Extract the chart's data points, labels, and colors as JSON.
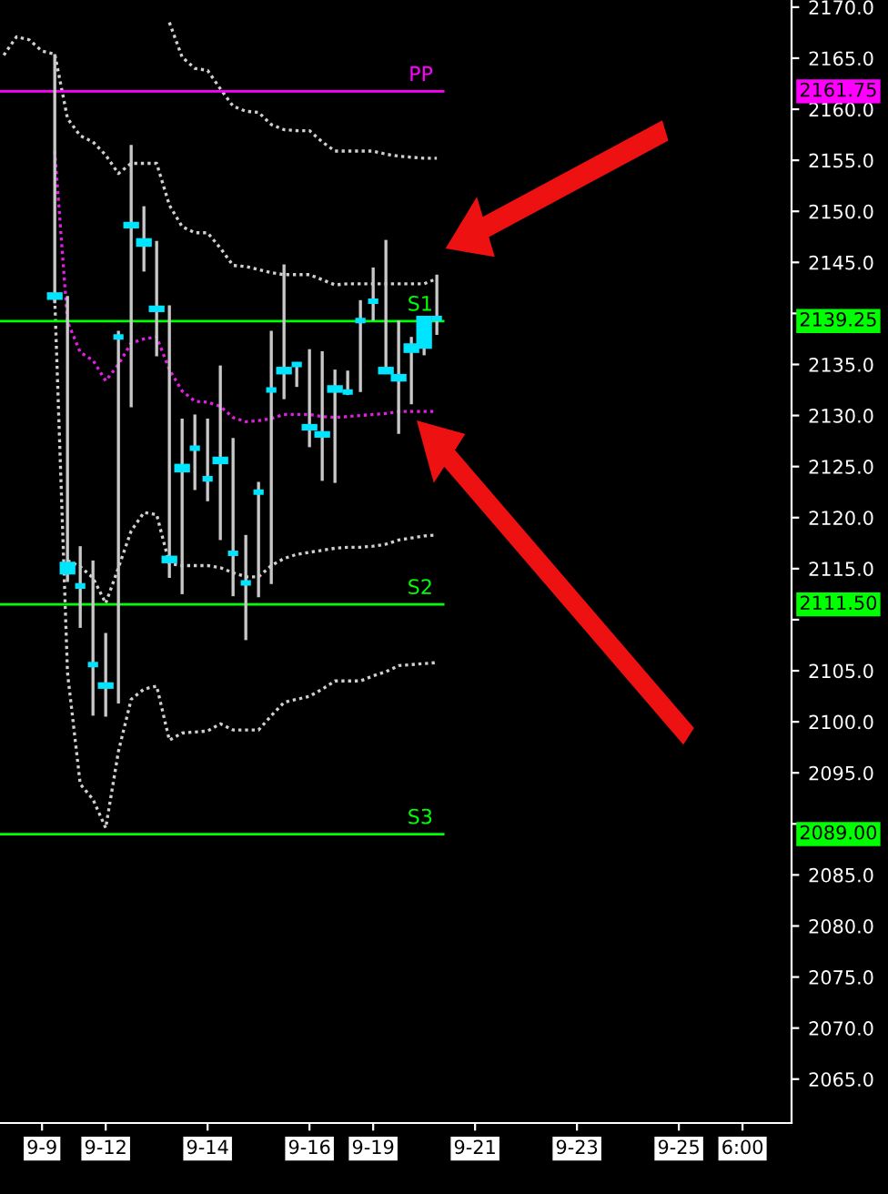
{
  "chart_data": {
    "type": "candlestick",
    "categories": [
      null,
      null,
      null,
      "9-9",
      null,
      null,
      null,
      null,
      "9-12",
      null,
      null,
      null,
      null,
      null,
      null,
      null,
      "9-14",
      null,
      null,
      null,
      null,
      null,
      null,
      null,
      "9-16",
      null,
      null,
      null,
      null,
      "9-19",
      null,
      null,
      null,
      null,
      null,
      null,
      null,
      "9-21",
      null,
      null,
      null,
      null,
      null,
      null,
      null,
      "9-23",
      null,
      null,
      null,
      null,
      null,
      null,
      null,
      "9-25",
      null,
      null,
      null,
      null,
      "6:00",
      null,
      null,
      null
    ],
    "ohlc": [
      null,
      null,
      null,
      null,
      [
        2141.8,
        2165.4,
        2141.0,
        2141.6
      ],
      [
        2114.7,
        2141.7,
        2113.7,
        2115.4
      ],
      [
        2113.3,
        2117.2,
        2109.2,
        2113.3
      ],
      [
        2105.6,
        2115.8,
        2100.6,
        2105.6
      ],
      [
        2103.6,
        2108.7,
        2100.5,
        2103.5
      ],
      [
        2137.7,
        2138.3,
        2101.8,
        2137.7
      ],
      [
        2148.6,
        2156.5,
        2130.8,
        2148.7
      ],
      [
        2147.1,
        2150.5,
        2144.1,
        2146.8
      ],
      [
        2140.5,
        2147.1,
        2135.8,
        2140.4
      ],
      [
        2116.0,
        2140.8,
        2114.1,
        2115.8
      ],
      [
        2125.0,
        2129.7,
        2112.5,
        2124.7
      ],
      [
        2126.8,
        2130.1,
        2122.7,
        2126.8
      ],
      [
        2123.8,
        2129.7,
        2121.6,
        2123.8
      ],
      [
        2125.5,
        2134.9,
        2117.8,
        2125.7
      ],
      [
        2116.5,
        2127.8,
        2112.3,
        2116.5
      ],
      [
        2113.6,
        2118.3,
        2108.0,
        2113.6
      ],
      [
        2122.5,
        2123.5,
        2112.2,
        2122.5
      ],
      [
        2132.5,
        2138.3,
        2113.5,
        2132.5
      ],
      [
        2134.3,
        2144.8,
        2131.6,
        2134.5
      ],
      [
        2135.0,
        2135.2,
        2132.8,
        2135.0
      ],
      [
        2128.8,
        2136.5,
        2126.9,
        2128.9
      ],
      [
        2128.1,
        2136.3,
        2123.6,
        2128.2
      ],
      [
        2132.7,
        2134.5,
        2123.4,
        2132.5
      ],
      [
        2132.3,
        2134.4,
        2132.0,
        2132.3
      ],
      [
        2139.3,
        2141.3,
        2132.3,
        2139.3
      ],
      [
        2141.2,
        2144.5,
        2139.3,
        2141.2
      ],
      [
        2134.3,
        2147.2,
        2134.3,
        2134.5
      ],
      [
        2133.6,
        2139.3,
        2128.2,
        2133.8
      ],
      [
        2136.4,
        2137.7,
        2131.1,
        2136.8
      ],
      [
        2136.8,
        2139.6,
        2135.9,
        2139.5
      ],
      [
        2139.5,
        2143.8,
        2137.9,
        2139.5
      ],
      null,
      null,
      null,
      null,
      null,
      null,
      null,
      null,
      null,
      null,
      null,
      null,
      null,
      null,
      null,
      null,
      null,
      null,
      null,
      null,
      null,
      null,
      null,
      null,
      null,
      null,
      null
    ],
    "series": [
      {
        "type": "line",
        "color": "#d0d0d0",
        "line_style": "dotted",
        "values": [
          null,
          null,
          null,
          null,
          null,
          null,
          null,
          null,
          null,
          null,
          null,
          null,
          null,
          2168.5,
          2165.1,
          2164.0,
          2163.8,
          2162.0,
          2160.3,
          2159.8,
          2159.7,
          2158.5,
          2158.0,
          2157.9,
          2157.9,
          2156.8,
          2155.9,
          2155.9,
          2155.9,
          2155.9,
          2155.6,
          2155.4,
          2155.3,
          2155.2,
          2155.2,
          null,
          null,
          null,
          null,
          null,
          null,
          null,
          null,
          null,
          null,
          null,
          null,
          null,
          null,
          null,
          null,
          null,
          null,
          null,
          null,
          null,
          null,
          null,
          null,
          null,
          null,
          null
        ]
      },
      {
        "type": "line",
        "color": "#d0d0d0",
        "line_style": "dotted",
        "values": [
          2165.3,
          2167.1,
          2166.8,
          2165.7,
          2165.4,
          2159.1,
          2157.4,
          2156.8,
          2155.5,
          2153.7,
          2154.7,
          2154.7,
          2154.7,
          2150.6,
          2148.5,
          2147.9,
          2147.9,
          2146.4,
          2144.7,
          2144.6,
          2144.3,
          2144.0,
          2143.8,
          2143.8,
          2143.8,
          2143.3,
          2142.8,
          2142.9,
          2142.9,
          2142.9,
          2142.9,
          2142.9,
          2142.9,
          2142.9,
          2143.4,
          null,
          null,
          null,
          null,
          null,
          null,
          null,
          null,
          null,
          null,
          null,
          null,
          null,
          null,
          null,
          null,
          null,
          null,
          null,
          null,
          null,
          null,
          null,
          null,
          null,
          null,
          null
        ]
      },
      {
        "type": "line",
        "color": "#e020e0",
        "line_style": "dotted",
        "values": [
          null,
          null,
          null,
          null,
          2155.9,
          2139.2,
          2136.2,
          2135.4,
          2133.4,
          2135.0,
          2137.1,
          2137.5,
          2137.7,
          2134.5,
          2132.4,
          2131.4,
          2131.3,
          2130.9,
          2129.8,
          2129.4,
          2129.5,
          2129.7,
          2130.1,
          2130.1,
          2130.1,
          2129.9,
          2129.8,
          2129.9,
          2130.0,
          2130.1,
          2130.2,
          2130.4,
          2130.4,
          2130.4,
          2130.4,
          null,
          null,
          null,
          null,
          null,
          null,
          null,
          null,
          null,
          null,
          null,
          null,
          null,
          null,
          null,
          null,
          null,
          null,
          null,
          null,
          null,
          null,
          null,
          null,
          null,
          null,
          null
        ]
      },
      {
        "type": "line",
        "color": "#d0d0d0",
        "line_style": "dotted",
        "values": [
          null,
          null,
          null,
          null,
          null,
          2115.8,
          2115.2,
          2114.1,
          2111.6,
          2115.1,
          2118.7,
          2120.5,
          2120.3,
          2115.5,
          2115.3,
          2115.3,
          2115.3,
          2115.1,
          2114.6,
          2114.2,
          2114.2,
          2115.3,
          2116.0,
          2116.4,
          2116.6,
          2116.8,
          2117.0,
          2117.1,
          2117.1,
          2117.2,
          2117.4,
          2117.8,
          2118.0,
          2118.2,
          2118.3,
          null,
          null,
          null,
          null,
          null,
          null,
          null,
          null,
          null,
          null,
          null,
          null,
          null,
          null,
          null,
          null,
          null,
          null,
          null,
          null,
          null,
          null,
          null,
          null,
          null,
          null,
          null
        ]
      },
      {
        "type": "line",
        "color": "#d0d0d0",
        "line_style": "dotted",
        "values": [
          null,
          null,
          null,
          null,
          2141.4,
          2104.8,
          2093.9,
          2092.4,
          2089.6,
          2097.1,
          2102.2,
          2103.2,
          2103.5,
          2098.2,
          2098.9,
          2099.0,
          2099.1,
          2099.8,
          2099.2,
          2099.2,
          2099.2,
          2100.6,
          2101.9,
          2102.2,
          2102.5,
          2103.2,
          2104.0,
          2104.0,
          2104.0,
          2104.5,
          2104.9,
          2105.5,
          2105.6,
          2105.7,
          2105.8,
          null,
          null,
          null,
          null,
          null,
          null,
          null,
          null,
          null,
          null,
          null,
          null,
          null,
          null,
          null,
          null,
          null,
          null,
          null,
          null,
          null,
          null,
          null,
          null,
          null,
          null,
          null
        ]
      }
    ],
    "ref_lines": [
      {
        "axis": "y",
        "value": 2161.75,
        "label": "PP",
        "color": "#ff00ff"
      },
      {
        "axis": "y",
        "value": 2139.25,
        "label": "S1",
        "color": "#00ff00"
      },
      {
        "axis": "y",
        "value": 2111.5,
        "label": "S2",
        "color": "#00ff00"
      },
      {
        "axis": "y",
        "value": 2089.0,
        "label": "S3",
        "color": "#00ff00"
      }
    ],
    "annotations": [
      "2161.75",
      "2139.25",
      "2111.50",
      "2089.00"
    ],
    "ylim": [
      2060.7,
      2170.7
    ],
    "yticks": [
      {
        "value": 2065,
        "label": "2065.0"
      },
      {
        "value": 2070,
        "label": "2070.0"
      },
      {
        "value": 2075,
        "label": "2075.0"
      },
      {
        "value": 2080,
        "label": "2080.0"
      },
      {
        "value": 2085,
        "label": "2085.0"
      },
      {
        "value": 2090,
        "label": null
      },
      {
        "value": 2095,
        "label": "2095.0"
      },
      {
        "value": 2100,
        "label": "2100.0"
      },
      {
        "value": 2105,
        "label": "2105.0"
      },
      {
        "value": 2110,
        "label": null
      },
      {
        "value": 2115,
        "label": "2115.0"
      },
      {
        "value": 2120,
        "label": "2120.0"
      },
      {
        "value": 2125,
        "label": "2125.0"
      },
      {
        "value": 2130,
        "label": "2130.0"
      },
      {
        "value": 2135,
        "label": "2135.0"
      },
      {
        "value": 2140,
        "label": null
      },
      {
        "value": 2145,
        "label": "2145.0"
      },
      {
        "value": 2150,
        "label": "2150.0"
      },
      {
        "value": 2155,
        "label": "2155.0"
      },
      {
        "value": 2160,
        "label": "2160.0"
      },
      {
        "value": 2165,
        "label": "2165.0"
      },
      {
        "value": 2170,
        "label": "2170.0"
      }
    ]
  }
}
